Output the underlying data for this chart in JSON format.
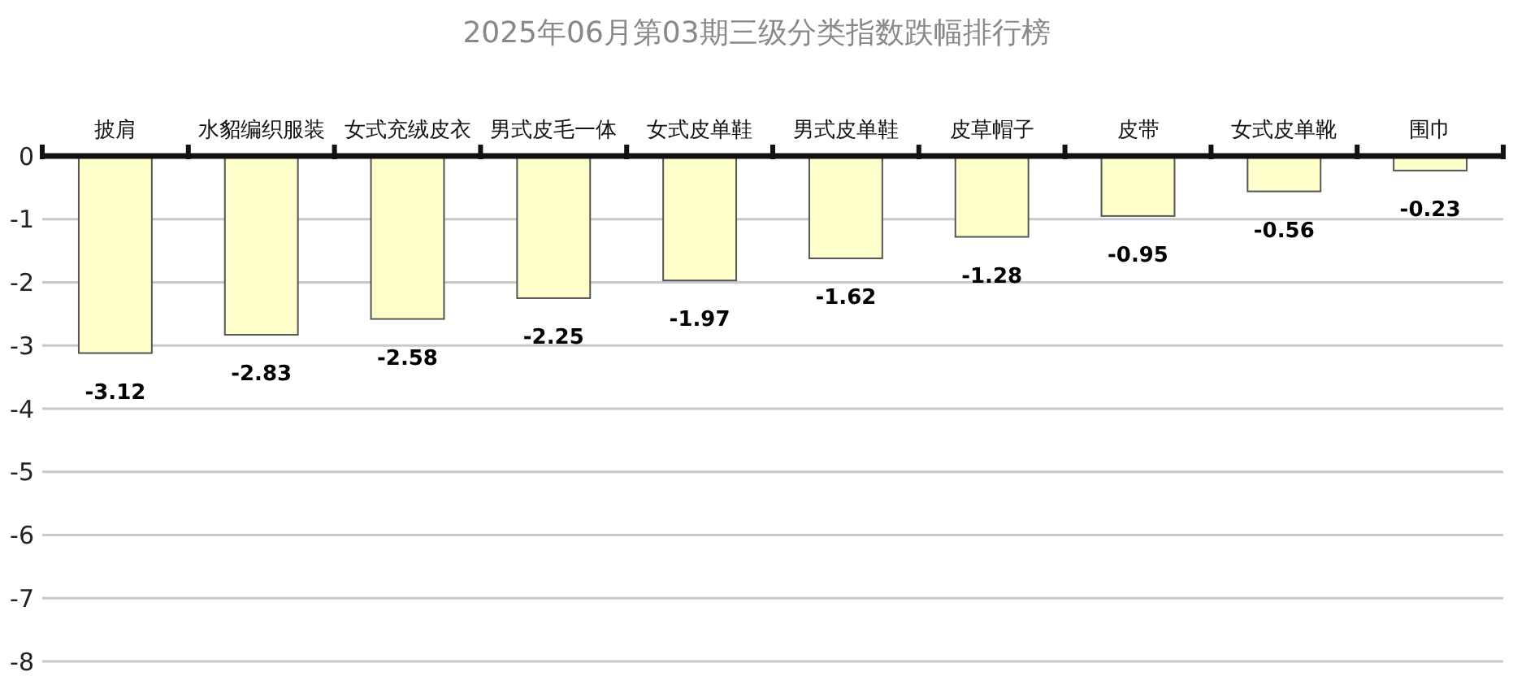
{
  "chart_data": {
    "type": "bar",
    "title": "2025年06月第03期三级分类指数跌幅排行榜",
    "categories": [
      "披肩",
      "水貂编织服装",
      "女式充绒皮衣",
      "男式皮毛一体",
      "女式皮单鞋",
      "男式皮单鞋",
      "皮草帽子",
      "皮带",
      "女式皮单靴",
      "围巾"
    ],
    "values": [
      -3.12,
      -2.83,
      -2.58,
      -2.25,
      -1.97,
      -1.62,
      -1.28,
      -0.95,
      -0.56,
      -0.23
    ],
    "color": "#ffffcc",
    "ylim": [
      -8,
      0
    ],
    "yticks": [
      0,
      -1,
      -2,
      -3,
      -4,
      -5,
      -6,
      -7,
      -8
    ],
    "grid": "y",
    "data_labels": true
  }
}
